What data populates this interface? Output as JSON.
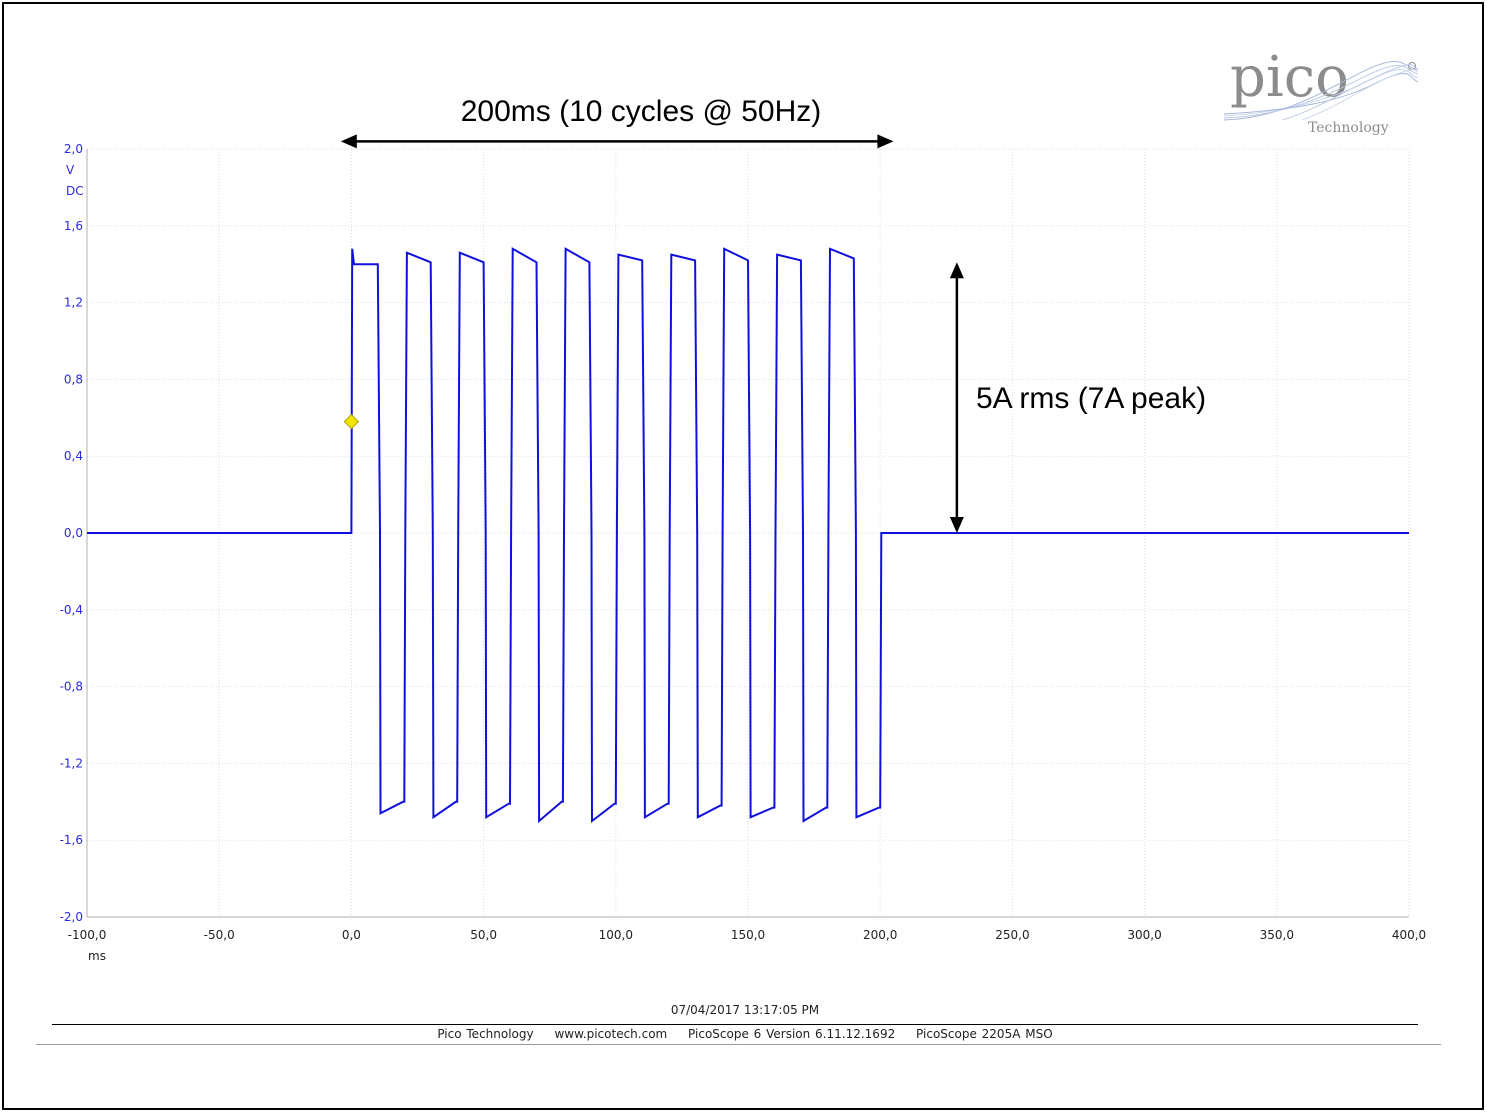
{
  "chart_data": {
    "type": "line",
    "title": "",
    "xlabel": "",
    "ylabel": "",
    "x_unit": "ms",
    "y_unit_lines": [
      "V",
      "DC"
    ],
    "xlim": [
      -100,
      400
    ],
    "ylim": [
      -2.0,
      2.0
    ],
    "x_ticks": [
      -100,
      -50,
      0,
      50,
      100,
      150,
      200,
      250,
      300,
      350,
      400
    ],
    "x_tick_labels": [
      "-100,0",
      "-50,0",
      "0,0",
      "50,0",
      "100,0",
      "150,0",
      "200,0",
      "250,0",
      "300,0",
      "350,0",
      "400,0"
    ],
    "y_ticks": [
      2.0,
      1.6,
      1.2,
      0.8,
      0.4,
      0.0,
      -0.4,
      -0.8,
      -1.2,
      -1.6,
      -2.0
    ],
    "y_tick_labels": [
      "2,0",
      "1,6",
      "1,2",
      "0,8",
      "0,4",
      "0,0",
      "-0,4",
      "-0,8",
      "-1,2",
      "-1,6",
      "-2,0"
    ],
    "grid": true,
    "line_color": "#1010dd",
    "trigger_marker": {
      "x": 0,
      "y": 0.58,
      "color": "#f2e600"
    },
    "series": [
      {
        "name": "",
        "x": [
          -100,
          0,
          0.3,
          1,
          10,
          10.8,
          11,
          19.5,
          20,
          20.4,
          21,
          30,
          30.8,
          31,
          39.5,
          40,
          40.4,
          41,
          50,
          50.8,
          51,
          59.5,
          60,
          60.4,
          61,
          70,
          70.8,
          71,
          79.5,
          80,
          80.4,
          81,
          90,
          90.8,
          91,
          99.5,
          100,
          100.4,
          101,
          110,
          110.8,
          111,
          119.5,
          120,
          120.4,
          121,
          130,
          130.8,
          131,
          139.5,
          140,
          140.4,
          141,
          150,
          150.8,
          151,
          159.5,
          160,
          160.4,
          161,
          170,
          170.8,
          171,
          179.5,
          180,
          180.4,
          181,
          190,
          190.8,
          191,
          199.5,
          200,
          200.4,
          201,
          400
        ],
        "y": [
          0,
          0,
          1.48,
          1.4,
          1.4,
          0,
          -1.46,
          -1.4,
          -1.4,
          0,
          1.46,
          1.41,
          0,
          -1.48,
          -1.4,
          -1.4,
          0,
          1.46,
          1.41,
          0,
          -1.48,
          -1.41,
          -1.41,
          0,
          1.48,
          1.41,
          0,
          -1.5,
          -1.4,
          -1.4,
          0,
          1.48,
          1.41,
          0,
          -1.5,
          -1.41,
          -1.41,
          0,
          1.45,
          1.42,
          0,
          -1.48,
          -1.41,
          -1.41,
          0,
          1.45,
          1.42,
          0,
          -1.48,
          -1.42,
          -1.42,
          0,
          1.48,
          1.42,
          0,
          -1.48,
          -1.43,
          -1.43,
          0,
          1.45,
          1.42,
          0,
          -1.5,
          -1.43,
          -1.43,
          0,
          1.48,
          1.43,
          0,
          -1.48,
          -1.43,
          -1.43,
          0,
          0,
          0
        ]
      }
    ],
    "annotations": [
      {
        "text": "200ms (10 cycles @ 50Hz)",
        "arrow": "horizontal",
        "from_x": -4,
        "to_x": 205,
        "at_y": 2.04
      },
      {
        "text": "5A rms (7A peak)",
        "arrow": "vertical",
        "at_x": 229,
        "from_y": 0,
        "to_y": 1.41
      }
    ]
  },
  "logo": {
    "wordmark": "pico",
    "subtitle": "Technology"
  },
  "footer": {
    "timestamp": "07/04/2017 13:17:05 PM",
    "company": "Pico Technology",
    "website": "www.picotech.com",
    "software": "PicoScope 6 Version 6.11.12.1692",
    "device": "PicoScope 2205A MSO"
  }
}
